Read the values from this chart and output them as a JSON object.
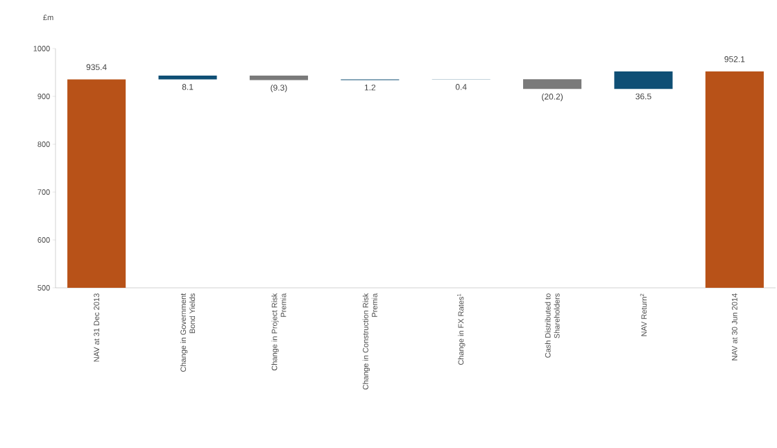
{
  "chart_data": {
    "type": "bar",
    "ylabel": "£m",
    "categories": [
      "NAV at 31 Dec 2013",
      "Change in Government Bond Yields",
      "Change in Project Risk Premia",
      "Change in Construction Risk Premia",
      "Change in FX Rates$^{1}$",
      "Cash Distributed to Shareholders",
      "NAV Return$^{2}$",
      "NAV at 30 Jun 2014"
    ],
    "values": [
      935.4,
      8.1,
      -9.3,
      1.2,
      0.4,
      -20.2,
      36.5,
      952.1
    ],
    "base": [
      null,
      935.4,
      943.5,
      934.2,
      935.4,
      935.8,
      915.6,
      null
    ],
    "colors": [
      "#b85218",
      "#0f4f75",
      "#7a7a7a",
      "#0f4f75",
      "#0f4f75",
      "#7a7a7a",
      "#0f4f75",
      "#b85218"
    ],
    "value_labels": [
      "935.4",
      "8.1",
      "(9.3)",
      "1.2",
      "0.4",
      "(20.2)",
      "36.5",
      "952.1"
    ],
    "ylim": [
      500,
      1000
    ],
    "yticks": [
      500,
      600,
      700,
      800,
      900,
      1000
    ],
    "grid": false
  }
}
